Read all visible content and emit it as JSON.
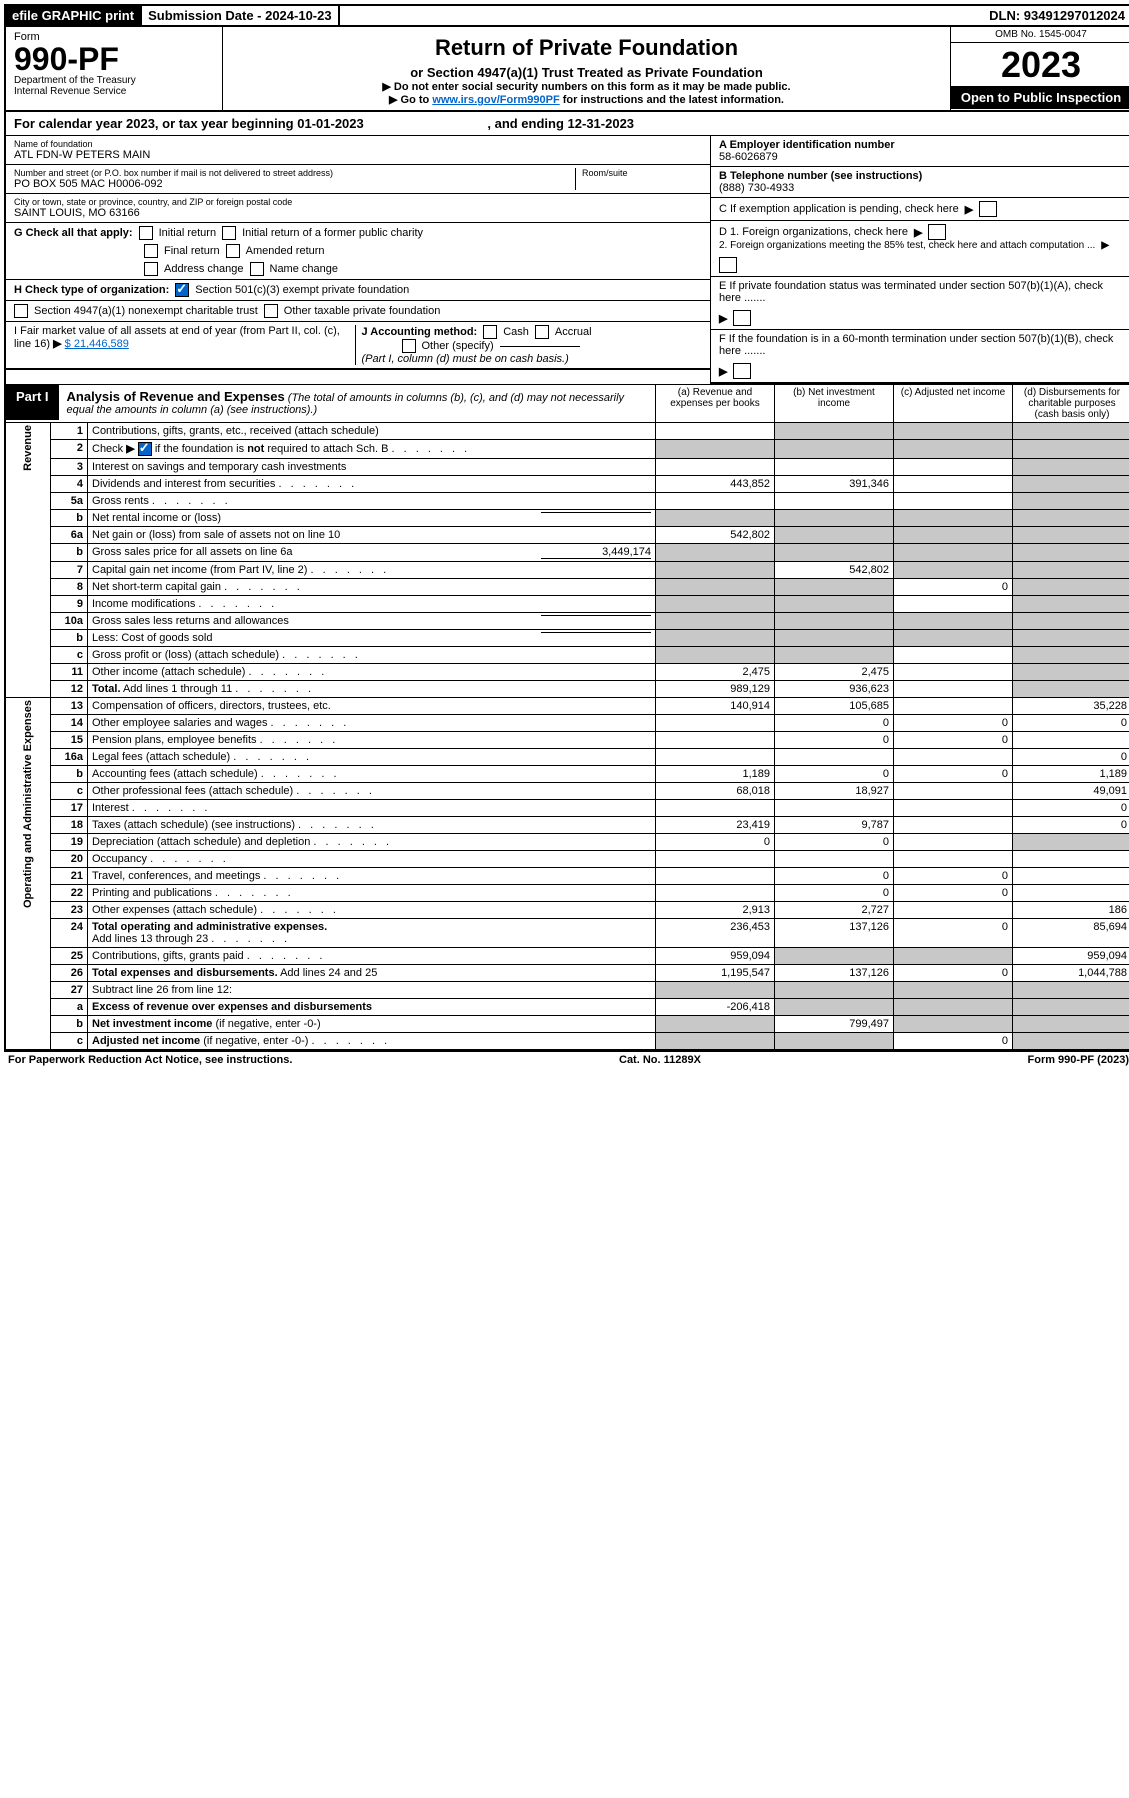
{
  "top": {
    "efile": "efile GRAPHIC print",
    "sub_label": "Submission Date - 2024-10-23",
    "dln": "DLN: 93491297012024"
  },
  "header": {
    "form_word": "Form",
    "form_num": "990-PF",
    "dept": "Department of the Treasury",
    "irs": "Internal Revenue Service",
    "title": "Return of Private Foundation",
    "subtitle": "or Section 4947(a)(1) Trust Treated as Private Foundation",
    "note1": "▶ Do not enter social security numbers on this form as it may be made public.",
    "note2_pre": "▶ Go to ",
    "note2_link": "www.irs.gov/Form990PF",
    "note2_post": " for instructions and the latest information.",
    "omb": "OMB No. 1545-0047",
    "year": "2023",
    "open": "Open to Public Inspection"
  },
  "calyear": {
    "text_pre": "For calendar year 2023, or tax year beginning ",
    "begin": "01-01-2023",
    "mid": " , and ending ",
    "end": "12-31-2023"
  },
  "info": {
    "name_label": "Name of foundation",
    "name": "ATL FDN-W PETERS MAIN",
    "addr_label": "Number and street (or P.O. box number if mail is not delivered to street address)",
    "addr": "PO BOX 505 MAC H0006-092",
    "room_label": "Room/suite",
    "city_label": "City or town, state or province, country, and ZIP or foreign postal code",
    "city": "SAINT LOUIS, MO  63166",
    "a_label": "A Employer identification number",
    "a_val": "58-6026879",
    "b_label": "B Telephone number (see instructions)",
    "b_val": "(888) 730-4933",
    "c_label": "C If exemption application is pending, check here",
    "g_label": "G Check all that apply:",
    "g1": "Initial return",
    "g2": "Initial return of a former public charity",
    "g3": "Final return",
    "g4": "Amended return",
    "g5": "Address change",
    "g6": "Name change",
    "d1": "D 1. Foreign organizations, check here",
    "d2": "2. Foreign organizations meeting the 85% test, check here and attach computation ...",
    "h_label": "H Check type of organization:",
    "h1": "Section 501(c)(3) exempt private foundation",
    "h2": "Section 4947(a)(1) nonexempt charitable trust",
    "h3": "Other taxable private foundation",
    "e_label": "E If private foundation status was terminated under section 507(b)(1)(A), check here .......",
    "i_label": "I Fair market value of all assets at end of year (from Part II, col. (c), line 16)",
    "i_val": "$  21,446,589",
    "j_label": "J Accounting method:",
    "j1": "Cash",
    "j2": "Accrual",
    "j3": "Other (specify)",
    "j_note": "(Part I, column (d) must be on cash basis.)",
    "f_label": "F If the foundation is in a 60-month termination under section 507(b)(1)(B), check here ......."
  },
  "part1": {
    "tag": "Part I",
    "title": "Analysis of Revenue and Expenses",
    "title_note": " (The total of amounts in columns (b), (c), and (d) may not necessarily equal the amounts in column (a) (see instructions).)",
    "col_a": "(a) Revenue and expenses per books",
    "col_b": "(b) Net investment income",
    "col_c": "(c) Adjusted net income",
    "col_d": "(d) Disbursements for charitable purposes (cash basis only)"
  },
  "side": {
    "revenue": "Revenue",
    "expenses": "Operating and Administrative Expenses"
  },
  "rows": [
    {
      "n": "1",
      "d": "g",
      "a": "",
      "b": "g",
      "c": "g"
    },
    {
      "n": "2",
      "d": "g",
      "a": "g",
      "b": "g",
      "c": "g",
      "dotted": true
    },
    {
      "n": "3",
      "d": "g",
      "a": "",
      "b": "",
      "c": ""
    },
    {
      "n": "4",
      "d": "g",
      "a": "443,852",
      "b": "391,346",
      "c": "",
      "dotted": true
    },
    {
      "n": "5a",
      "d": "g",
      "a": "",
      "b": "",
      "c": "",
      "dotted": true
    },
    {
      "n": "b",
      "d": "g",
      "a": "g",
      "b": "g",
      "c": "g",
      "inline": true
    },
    {
      "n": "6a",
      "d": "g",
      "a": "542,802",
      "b": "g",
      "c": "g"
    },
    {
      "n": "b",
      "d": "g",
      "a": "g",
      "b": "g",
      "c": "g",
      "inline": true,
      "inline_val": "3,449,174"
    },
    {
      "n": "7",
      "d": "g",
      "a": "g",
      "b": "542,802",
      "c": "g",
      "dotted": true
    },
    {
      "n": "8",
      "d": "g",
      "a": "g",
      "b": "g",
      "c": "0",
      "dotted": true
    },
    {
      "n": "9",
      "d": "g",
      "a": "g",
      "b": "g",
      "c": "",
      "dotted": true
    },
    {
      "n": "10a",
      "d": "g",
      "a": "g",
      "b": "g",
      "c": "g",
      "inline": true
    },
    {
      "n": "b",
      "d": "g",
      "a": "g",
      "b": "g",
      "c": "g",
      "inline": true,
      "dotted": true
    },
    {
      "n": "c",
      "d": "g",
      "a": "g",
      "b": "g",
      "c": "",
      "dotted": true
    },
    {
      "n": "11",
      "d": "g",
      "a": "2,475",
      "b": "2,475",
      "c": "",
      "dotted": true
    },
    {
      "n": "12",
      "d": "g",
      "a": "989,129",
      "b": "936,623",
      "c": "",
      "bold": true,
      "dotted": true
    }
  ],
  "exp_rows": [
    {
      "n": "13",
      "d": "35,228",
      "a": "140,914",
      "b": "105,685",
      "c": ""
    },
    {
      "n": "14",
      "d": "0",
      "a": "",
      "b": "0",
      "c": "0",
      "dotted": true
    },
    {
      "n": "15",
      "d": "",
      "a": "",
      "b": "0",
      "c": "0",
      "dotted": true
    },
    {
      "n": "16a",
      "d": "0",
      "a": "",
      "b": "",
      "c": "",
      "dotted": true
    },
    {
      "n": "b",
      "d": "1,189",
      "a": "1,189",
      "b": "0",
      "c": "0",
      "dotted": true
    },
    {
      "n": "c",
      "d": "49,091",
      "a": "68,018",
      "b": "18,927",
      "c": "",
      "dotted": true
    },
    {
      "n": "17",
      "d": "0",
      "a": "",
      "b": "",
      "c": "",
      "dotted": true
    },
    {
      "n": "18",
      "d": "0",
      "a": "23,419",
      "b": "9,787",
      "c": "",
      "dotted": true
    },
    {
      "n": "19",
      "d": "g",
      "a": "0",
      "b": "0",
      "c": "",
      "dotted": true
    },
    {
      "n": "20",
      "d": "",
      "a": "",
      "b": "",
      "c": "",
      "dotted": true
    },
    {
      "n": "21",
      "d": "",
      "a": "",
      "b": "0",
      "c": "0",
      "dotted": true
    },
    {
      "n": "22",
      "d": "",
      "a": "",
      "b": "0",
      "c": "0",
      "dotted": true
    },
    {
      "n": "23",
      "d": "186",
      "a": "2,913",
      "b": "2,727",
      "c": "",
      "dotted": true
    },
    {
      "n": "24",
      "d": "85,694",
      "a": "236,453",
      "b": "137,126",
      "c": "0",
      "bold": true,
      "dotted": true
    },
    {
      "n": "25",
      "d": "959,094",
      "a": "959,094",
      "b": "g",
      "c": "g",
      "dotted": true
    },
    {
      "n": "26",
      "d": "1,044,788",
      "a": "1,195,547",
      "b": "137,126",
      "c": "0",
      "bold": true
    },
    {
      "n": "27",
      "d": "g",
      "a": "g",
      "b": "g",
      "c": "g"
    },
    {
      "n": "a",
      "d": "g",
      "a": "-206,418",
      "b": "g",
      "c": "g",
      "bold": true
    },
    {
      "n": "b",
      "d": "g",
      "a": "g",
      "b": "799,497",
      "c": "g",
      "bold": true
    },
    {
      "n": "c",
      "d": "g",
      "a": "g",
      "b": "g",
      "c": "0",
      "bold": true,
      "dotted": true
    }
  ],
  "footer": {
    "left": "For Paperwork Reduction Act Notice, see instructions.",
    "mid": "Cat. No. 11289X",
    "right": "Form 990-PF (2023)"
  }
}
